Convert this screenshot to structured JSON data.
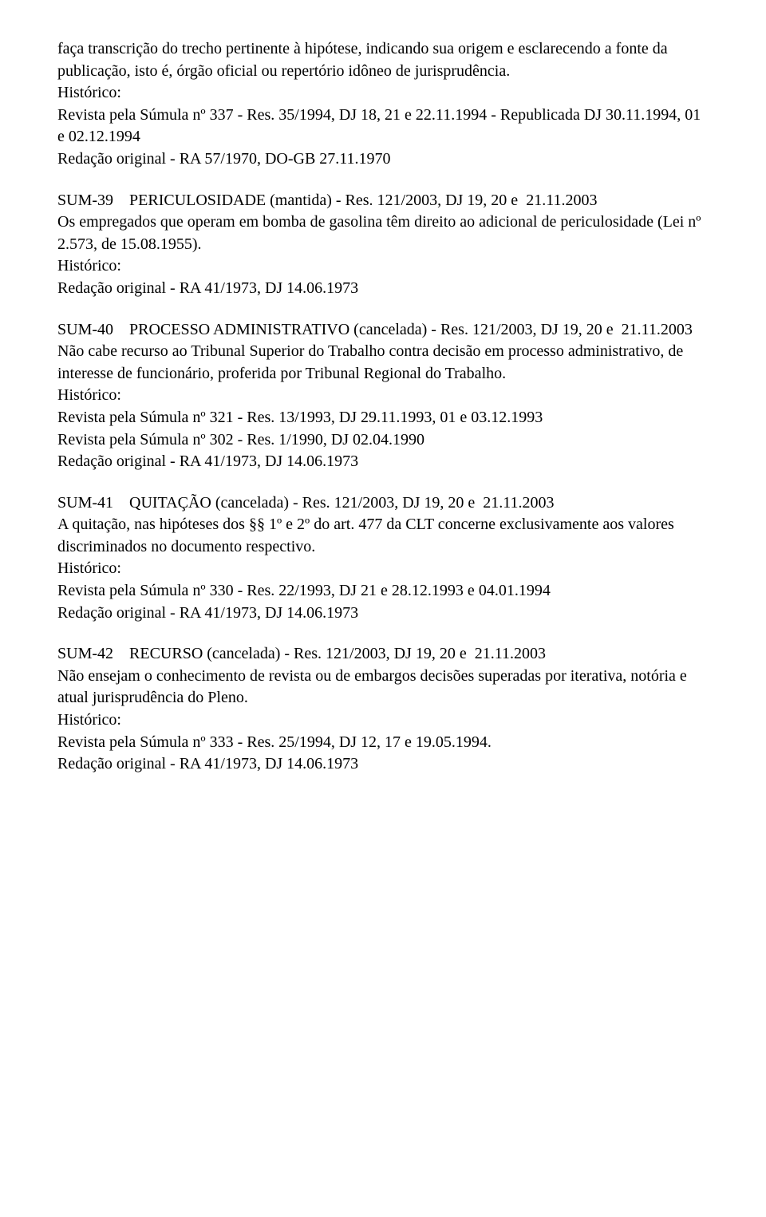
{
  "intro": {
    "p1": "faça transcrição do trecho pertinente à hipótese, indicando sua origem e esclarecendo a fonte da publicação, isto é, órgão oficial ou repertório idôneo de jurisprudência.",
    "hist_label": "Histórico:",
    "h1": "Revista pela Súmula nº 337 - Res. 35/1994, DJ 18, 21 e 22.11.1994 - Republicada DJ 30.11.1994, 01 e 02.12.1994",
    "h2": "Redação original - RA 57/1970, DO-GB 27.11.1970"
  },
  "sum39": {
    "title": "SUM-39    PERICULOSIDADE (mantida) - Res. 121/2003, DJ 19, 20 e  21.11.2003",
    "body": "Os empregados que operam em bomba de gasolina têm direito ao adicional de periculosidade (Lei nº 2.573, de 15.08.1955).",
    "hist_label": "Histórico:",
    "h1": "Redação original - RA 41/1973, DJ 14.06.1973"
  },
  "sum40": {
    "title": "SUM-40    PROCESSO ADMINISTRATIVO (cancelada) - Res. 121/2003, DJ 19, 20 e  21.11.2003",
    "body": "Não cabe recurso ao Tribunal Superior do Trabalho contra decisão em processo administrativo, de interesse de funcionário, proferida por Tribunal Regional do Trabalho.",
    "hist_label": "Histórico:",
    "h1": "Revista pela Súmula nº 321 - Res. 13/1993, DJ 29.11.1993, 01 e 03.12.1993",
    "h2": "Revista pela Súmula nº 302 - Res. 1/1990, DJ 02.04.1990",
    "h3": "Redação original - RA 41/1973, DJ 14.06.1973"
  },
  "sum41": {
    "title": "SUM-41    QUITAÇÃO (cancelada) - Res. 121/2003, DJ 19, 20 e  21.11.2003",
    "body": "A quitação, nas hipóteses dos §§ 1º e 2º do art. 477 da CLT concerne exclusivamente aos valores discriminados no documento respectivo.",
    "hist_label": "Histórico:",
    "h1": "Revista pela Súmula nº 330 - Res. 22/1993, DJ 21 e 28.12.1993 e 04.01.1994",
    "h2": "Redação original - RA 41/1973, DJ 14.06.1973"
  },
  "sum42": {
    "title": "SUM-42    RECURSO (cancelada) - Res. 121/2003, DJ 19, 20 e  21.11.2003",
    "body": "Não ensejam o conhecimento de revista ou de embargos decisões superadas por iterativa, notória e atual jurisprudência do Pleno.",
    "hist_label": "Histórico:",
    "h1": "Revista pela Súmula nº 333 - Res. 25/1994, DJ 12, 17 e 19.05.1994.",
    "h2": "Redação original - RA 41/1973, DJ 14.06.1973"
  }
}
